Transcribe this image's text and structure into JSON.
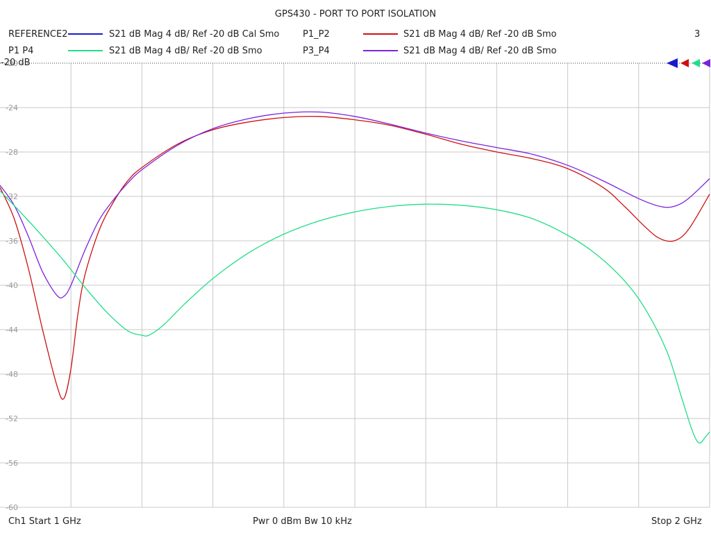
{
  "chart_data": {
    "type": "line",
    "title": "GPS430 - PORT TO PORT ISOLATION",
    "x_start_label": "Ch1  Start  1 GHz",
    "x_stop_label": "Stop  2 GHz",
    "center_label": "Pwr  0 dBm  Bw  10 kHz",
    "page_number": "3",
    "ref_level_label": "-20 dB",
    "xlim": [
      1.0,
      2.0
    ],
    "ylim": [
      -60,
      -20
    ],
    "yticks": [
      -20,
      -24,
      -28,
      -32,
      -36,
      -40,
      -44,
      -48,
      -52,
      -56,
      -60
    ],
    "ytick_labels": [
      "-20",
      "-24",
      "-28",
      "-32",
      "-36",
      "-40",
      "-44",
      "-48",
      "-52",
      "-56",
      "-60"
    ],
    "grid": true,
    "legend": [
      {
        "name": "REFERENCE2",
        "desc": "S21  dB Mag  4 dB/ Ref -20 dB  Cal Smo",
        "color": "#1a1acc"
      },
      {
        "name": "P1_P2",
        "desc": "S21  dB Mag  4 dB/ Ref -20 dB  Smo",
        "color": "#cc1111"
      },
      {
        "name": "P1  P4",
        "desc": "S21  dB Mag  4 dB/ Ref -20 dB  Smo",
        "color": "#22dd88"
      },
      {
        "name": "P3_P4",
        "desc": "S21  dB Mag  4 dB/ Ref -20 dB  Smo",
        "color": "#7a22dd"
      }
    ],
    "series": [
      {
        "name": "P1_P2",
        "color": "#cc1111",
        "x": [
          1.0,
          1.02,
          1.04,
          1.06,
          1.08,
          1.09,
          1.1,
          1.11,
          1.12,
          1.14,
          1.16,
          1.18,
          1.2,
          1.25,
          1.3,
          1.35,
          1.4,
          1.45,
          1.5,
          1.55,
          1.6,
          1.65,
          1.7,
          1.75,
          1.8,
          1.85,
          1.88,
          1.91,
          1.93,
          1.95,
          1.97,
          2.0
        ],
        "y": [
          -31.2,
          -34,
          -38.5,
          -44,
          -49,
          -50.2,
          -47.5,
          -42.5,
          -39,
          -35,
          -32.5,
          -30.6,
          -29.4,
          -27.3,
          -26.0,
          -25.3,
          -24.9,
          -24.8,
          -25.1,
          -25.6,
          -26.4,
          -27.3,
          -28.0,
          -28.6,
          -29.5,
          -31.2,
          -32.9,
          -34.8,
          -35.8,
          -36.0,
          -35.0,
          -31.8
        ]
      },
      {
        "name": "P3_P4",
        "color": "#7a22dd",
        "x": [
          1.0,
          1.02,
          1.04,
          1.06,
          1.08,
          1.09,
          1.1,
          1.12,
          1.14,
          1.16,
          1.18,
          1.2,
          1.25,
          1.3,
          1.35,
          1.4,
          1.45,
          1.5,
          1.55,
          1.6,
          1.65,
          1.7,
          1.75,
          1.8,
          1.85,
          1.9,
          1.93,
          1.95,
          1.97,
          2.0
        ],
        "y": [
          -31.0,
          -32.8,
          -35.6,
          -38.8,
          -40.9,
          -41.0,
          -40.0,
          -36.8,
          -34.1,
          -32.3,
          -30.8,
          -29.6,
          -27.4,
          -25.9,
          -25.0,
          -24.5,
          -24.4,
          -24.8,
          -25.5,
          -26.3,
          -27.0,
          -27.6,
          -28.2,
          -29.2,
          -30.6,
          -32.2,
          -32.9,
          -32.9,
          -32.2,
          -30.4
        ]
      },
      {
        "name": "P1  P4",
        "color": "#22dd88",
        "x": [
          1.0,
          1.03,
          1.06,
          1.09,
          1.12,
          1.15,
          1.18,
          1.2,
          1.21,
          1.23,
          1.26,
          1.3,
          1.35,
          1.4,
          1.45,
          1.5,
          1.55,
          1.6,
          1.65,
          1.7,
          1.75,
          1.8,
          1.84,
          1.88,
          1.91,
          1.94,
          1.96,
          1.975,
          1.985,
          1.995,
          2.0
        ],
        "y": [
          -31.5,
          -33.5,
          -35.6,
          -37.8,
          -40.2,
          -42.4,
          -44.1,
          -44.5,
          -44.5,
          -43.6,
          -41.7,
          -39.4,
          -37.1,
          -35.4,
          -34.2,
          -33.4,
          -32.9,
          -32.7,
          -32.8,
          -33.2,
          -34.0,
          -35.5,
          -37.2,
          -39.6,
          -42.2,
          -46.0,
          -50.0,
          -53.0,
          -54.2,
          -53.6,
          -53.2
        ]
      },
      {
        "name": "REFERENCE2",
        "color": "#1a1acc",
        "x": [],
        "y": []
      }
    ]
  }
}
